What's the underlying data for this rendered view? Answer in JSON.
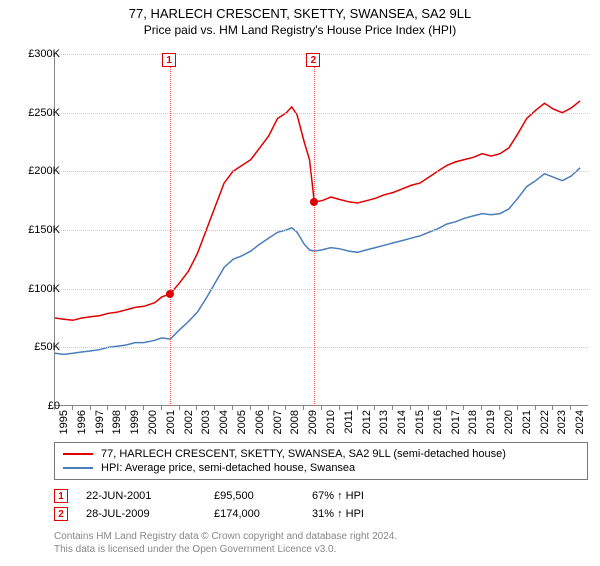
{
  "title": "77, HARLECH CRESCENT, SKETTY, SWANSEA, SA2 9LL",
  "subtitle": "Price paid vs. HM Land Registry's House Price Index (HPI)",
  "chart": {
    "type": "line",
    "background_color": "#ffffff",
    "grid_color": "#cccccc",
    "axis_color": "#888888",
    "x_start": 1995,
    "x_end": 2025,
    "xticks": [
      1995,
      1996,
      1997,
      1998,
      1999,
      2000,
      2001,
      2002,
      2003,
      2004,
      2005,
      2006,
      2007,
      2008,
      2009,
      2010,
      2011,
      2012,
      2013,
      2014,
      2015,
      2016,
      2017,
      2018,
      2019,
      2020,
      2021,
      2022,
      2023,
      2024
    ],
    "ylim": [
      0,
      300000
    ],
    "yticks": [
      0,
      50000,
      100000,
      150000,
      200000,
      250000,
      300000
    ],
    "ytick_labels": [
      "£0",
      "£50K",
      "£100K",
      "£150K",
      "£200K",
      "£250K",
      "£300K"
    ],
    "series": [
      {
        "name": "77, HARLECH CRESCENT, SKETTY, SWANSEA, SA2 9LL (semi-detached house)",
        "color": "#e00000",
        "width": 1.5,
        "points": [
          [
            1995.0,
            75000
          ],
          [
            1995.5,
            74000
          ],
          [
            1996.0,
            73000
          ],
          [
            1996.5,
            75000
          ],
          [
            1997.0,
            76000
          ],
          [
            1997.5,
            77000
          ],
          [
            1998.0,
            79000
          ],
          [
            1998.5,
            80000
          ],
          [
            1999.0,
            82000
          ],
          [
            1999.5,
            84000
          ],
          [
            2000.0,
            85000
          ],
          [
            2000.6,
            88000
          ],
          [
            2001.0,
            93000
          ],
          [
            2001.47,
            95500
          ],
          [
            2002.0,
            105000
          ],
          [
            2002.5,
            115000
          ],
          [
            2003.0,
            130000
          ],
          [
            2003.5,
            150000
          ],
          [
            2004.0,
            170000
          ],
          [
            2004.5,
            190000
          ],
          [
            2005.0,
            200000
          ],
          [
            2005.5,
            205000
          ],
          [
            2006.0,
            210000
          ],
          [
            2006.5,
            220000
          ],
          [
            2007.0,
            230000
          ],
          [
            2007.5,
            245000
          ],
          [
            2008.0,
            250000
          ],
          [
            2008.3,
            255000
          ],
          [
            2008.6,
            248000
          ],
          [
            2009.0,
            225000
          ],
          [
            2009.3,
            210000
          ],
          [
            2009.57,
            174000
          ],
          [
            2010.0,
            175000
          ],
          [
            2010.5,
            178000
          ],
          [
            2011.0,
            176000
          ],
          [
            2011.5,
            174000
          ],
          [
            2012.0,
            173000
          ],
          [
            2012.5,
            175000
          ],
          [
            2013.0,
            177000
          ],
          [
            2013.5,
            180000
          ],
          [
            2014.0,
            182000
          ],
          [
            2014.5,
            185000
          ],
          [
            2015.0,
            188000
          ],
          [
            2015.5,
            190000
          ],
          [
            2016.0,
            195000
          ],
          [
            2016.5,
            200000
          ],
          [
            2017.0,
            205000
          ],
          [
            2017.5,
            208000
          ],
          [
            2018.0,
            210000
          ],
          [
            2018.5,
            212000
          ],
          [
            2019.0,
            215000
          ],
          [
            2019.5,
            213000
          ],
          [
            2020.0,
            215000
          ],
          [
            2020.5,
            220000
          ],
          [
            2021.0,
            232000
          ],
          [
            2021.5,
            245000
          ],
          [
            2022.0,
            252000
          ],
          [
            2022.5,
            258000
          ],
          [
            2023.0,
            253000
          ],
          [
            2023.5,
            250000
          ],
          [
            2024.0,
            254000
          ],
          [
            2024.5,
            260000
          ]
        ]
      },
      {
        "name": "HPI: Average price, semi-detached house, Swansea",
        "color": "#4a7ebb",
        "width": 1.5,
        "points": [
          [
            1995.0,
            45000
          ],
          [
            1995.5,
            44000
          ],
          [
            1996.0,
            45000
          ],
          [
            1996.5,
            46000
          ],
          [
            1997.0,
            47000
          ],
          [
            1997.5,
            48000
          ],
          [
            1998.0,
            50000
          ],
          [
            1998.5,
            51000
          ],
          [
            1999.0,
            52000
          ],
          [
            1999.5,
            54000
          ],
          [
            2000.0,
            54000
          ],
          [
            2000.6,
            56000
          ],
          [
            2001.0,
            58000
          ],
          [
            2001.47,
            57000
          ],
          [
            2002.0,
            65000
          ],
          [
            2002.5,
            72000
          ],
          [
            2003.0,
            80000
          ],
          [
            2003.5,
            92000
          ],
          [
            2004.0,
            105000
          ],
          [
            2004.5,
            118000
          ],
          [
            2005.0,
            125000
          ],
          [
            2005.5,
            128000
          ],
          [
            2006.0,
            132000
          ],
          [
            2006.5,
            138000
          ],
          [
            2007.0,
            143000
          ],
          [
            2007.5,
            148000
          ],
          [
            2008.0,
            150000
          ],
          [
            2008.3,
            152000
          ],
          [
            2008.6,
            148000
          ],
          [
            2009.0,
            138000
          ],
          [
            2009.3,
            133000
          ],
          [
            2009.57,
            132000
          ],
          [
            2010.0,
            133000
          ],
          [
            2010.5,
            135000
          ],
          [
            2011.0,
            134000
          ],
          [
            2011.5,
            132000
          ],
          [
            2012.0,
            131000
          ],
          [
            2012.5,
            133000
          ],
          [
            2013.0,
            135000
          ],
          [
            2013.5,
            137000
          ],
          [
            2014.0,
            139000
          ],
          [
            2014.5,
            141000
          ],
          [
            2015.0,
            143000
          ],
          [
            2015.5,
            145000
          ],
          [
            2016.0,
            148000
          ],
          [
            2016.5,
            151000
          ],
          [
            2017.0,
            155000
          ],
          [
            2017.5,
            157000
          ],
          [
            2018.0,
            160000
          ],
          [
            2018.5,
            162000
          ],
          [
            2019.0,
            164000
          ],
          [
            2019.5,
            163000
          ],
          [
            2020.0,
            164000
          ],
          [
            2020.5,
            168000
          ],
          [
            2021.0,
            177000
          ],
          [
            2021.5,
            187000
          ],
          [
            2022.0,
            192000
          ],
          [
            2022.5,
            198000
          ],
          [
            2023.0,
            195000
          ],
          [
            2023.5,
            192000
          ],
          [
            2024.0,
            196000
          ],
          [
            2024.5,
            203000
          ]
        ]
      }
    ],
    "markers": [
      {
        "label": "1",
        "x": 2001.47,
        "line_color": "#ff4d4d"
      },
      {
        "label": "2",
        "x": 2009.57,
        "line_color": "#ff4d4d"
      }
    ],
    "sale_points": [
      {
        "x": 2001.47,
        "y": 95500
      },
      {
        "x": 2009.57,
        "y": 174000
      }
    ]
  },
  "legend": {
    "items": [
      {
        "color": "#e00000",
        "label": "77, HARLECH CRESCENT, SKETTY, SWANSEA, SA2 9LL (semi-detached house)"
      },
      {
        "color": "#4a7ebb",
        "label": "HPI: Average price, semi-detached house, Swansea"
      }
    ]
  },
  "sales": [
    {
      "marker": "1",
      "date": "22-JUN-2001",
      "price": "£95,500",
      "pct": "67% ↑ HPI"
    },
    {
      "marker": "2",
      "date": "28-JUL-2009",
      "price": "£174,000",
      "pct": "31% ↑ HPI"
    }
  ],
  "attribution": {
    "line1": "Contains HM Land Registry data © Crown copyright and database right 2024.",
    "line2": "This data is licensed under the Open Government Licence v3.0."
  }
}
